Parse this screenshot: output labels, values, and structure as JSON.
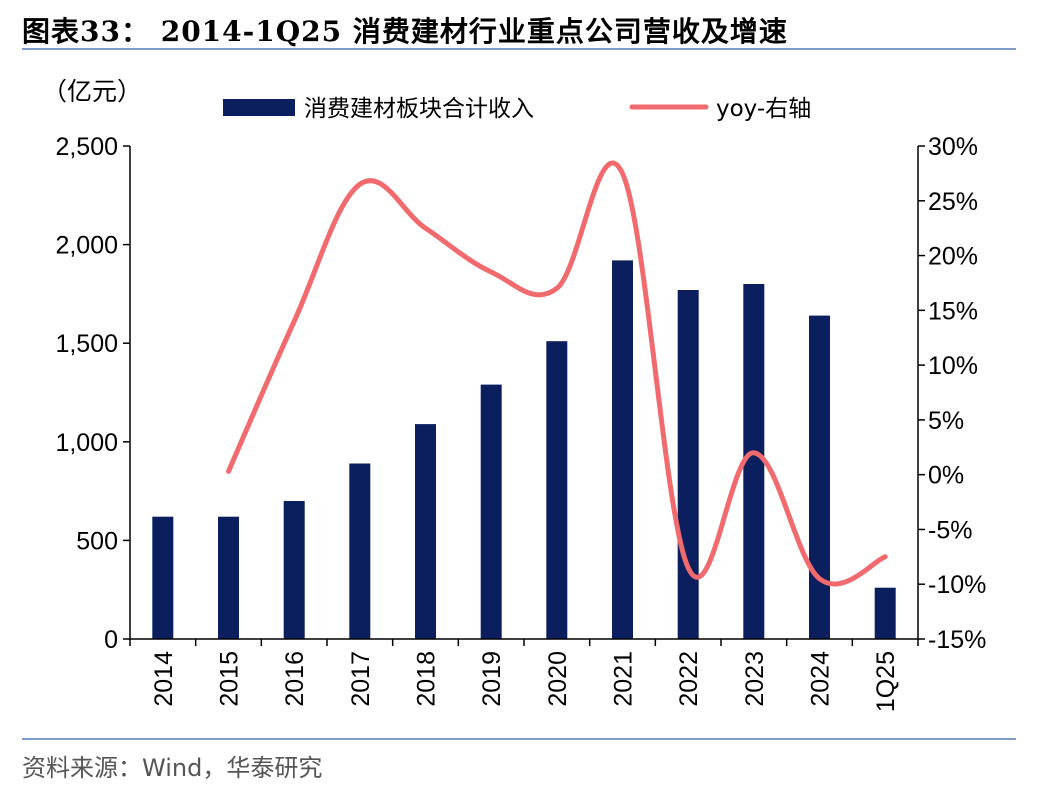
{
  "figure": {
    "title": "图表33： 2014-1Q25 消费建材行业重点公司营收及增速",
    "source": "资料来源：Wind，华泰研究"
  },
  "colors": {
    "bar": "#0b1f5e",
    "line": "#f06a6e",
    "rule": "#7f9bc8",
    "axis": "#000000"
  },
  "chart_data": {
    "type": "bar",
    "categories": [
      "2014",
      "2015",
      "2016",
      "2017",
      "2018",
      "2019",
      "2020",
      "2021",
      "2022",
      "2023",
      "2024",
      "1Q25"
    ],
    "ylabel": "（亿元）",
    "ylim": [
      0,
      2500
    ],
    "y_ticks": [
      "0",
      "500",
      "1,000",
      "1,500",
      "2,000",
      "2,500"
    ],
    "y2lim": [
      -15,
      30
    ],
    "y2_ticks": [
      "-15%",
      "-10%",
      "-5%",
      "0%",
      "5%",
      "10%",
      "15%",
      "20%",
      "25%",
      "30%"
    ],
    "legend_position": "top",
    "grid": false,
    "series": [
      {
        "name": "消费建材板块合计收入",
        "type": "bar",
        "axis": "left",
        "values": [
          620,
          620,
          700,
          890,
          1090,
          1290,
          1510,
          1920,
          1770,
          1800,
          1640,
          260
        ]
      },
      {
        "name": "yoy-右轴",
        "type": "line",
        "axis": "right",
        "values": [
          null,
          0.3,
          14,
          26.5,
          22.5,
          18.5,
          17,
          27.5,
          -8.5,
          2,
          -9.5,
          -7.5
        ]
      }
    ]
  }
}
